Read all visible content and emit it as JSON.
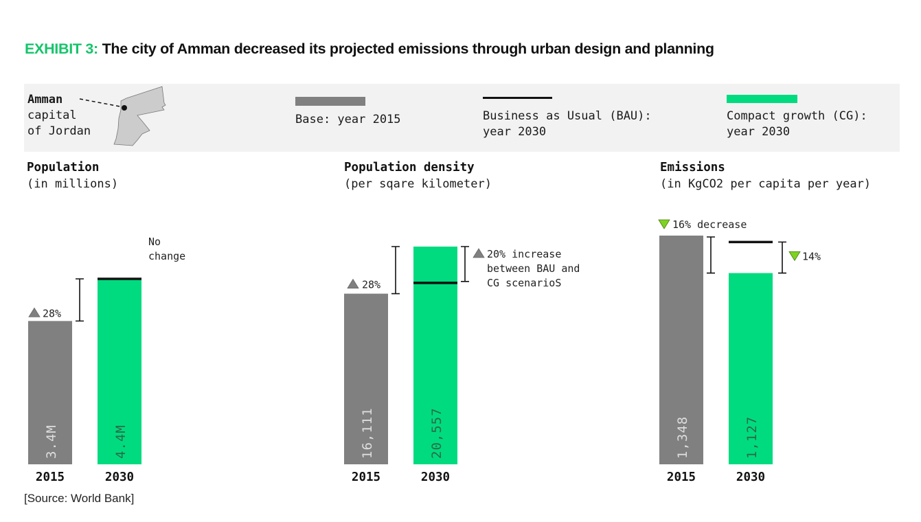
{
  "title": {
    "prefix": "EXHIBIT 3:",
    "text": " The city of Amman decreased its projected emissions through urban design and planning"
  },
  "legend": {
    "location": {
      "city": "Amman",
      "line2": "capital",
      "line3": "of Jordan",
      "map_icon": "jordan-map-icon"
    },
    "items": [
      {
        "label_line1": "Base: year 2015",
        "label_line2": "",
        "swatch": "bar",
        "color": "#808080"
      },
      {
        "label_line1": "Business as Usual (BAU):",
        "label_line2": "year 2030",
        "swatch": "line",
        "color": "#111111"
      },
      {
        "label_line1": "Compact growth (CG):",
        "label_line2": "year 2030",
        "swatch": "bar",
        "color": "#00db80"
      }
    ]
  },
  "colors": {
    "base": "#808080",
    "bau": "#111111",
    "cg": "#00db80",
    "exhibit_accent": "#17c46b",
    "increase_marker": "#808080",
    "decrease_marker": "#7ed321"
  },
  "chart_data": [
    {
      "type": "bar",
      "title": "Population",
      "subtitle": "(in millions)",
      "categories": [
        "2015",
        "2030"
      ],
      "series": [
        {
          "name": "Base: year 2015",
          "values": [
            3.4,
            null
          ],
          "labels": [
            "3.4M",
            ""
          ]
        },
        {
          "name": "Compact growth (CG): year 2030",
          "values": [
            null,
            4.4
          ],
          "labels": [
            "",
            "4.4M"
          ]
        },
        {
          "name": "Business as Usual (BAU): year 2030",
          "values": [
            null,
            4.4
          ]
        }
      ],
      "annotations": [
        {
          "text": "28%",
          "marker": "up-triangle",
          "target": "2015 to 2030 change"
        },
        {
          "text": "No change",
          "target": "BAU vs CG 2030"
        }
      ]
    },
    {
      "type": "bar",
      "title": "Population density",
      "subtitle": "(per sqare kilometer)",
      "categories": [
        "2015",
        "2030"
      ],
      "series": [
        {
          "name": "Base: year 2015",
          "values": [
            16111,
            null
          ],
          "labels": [
            "16,111",
            ""
          ]
        },
        {
          "name": "Compact growth (CG): year 2030",
          "values": [
            null,
            20557
          ],
          "labels": [
            "",
            "20,557"
          ]
        },
        {
          "name": "Business as Usual (BAU): year 2030",
          "values": [
            null,
            17130
          ]
        }
      ],
      "annotations": [
        {
          "text": "28%",
          "marker": "up-triangle",
          "target": "2015 to 2030 change"
        },
        {
          "text": "20% increase between BAU and CG scenarioS",
          "lines": [
            "20% increase",
            "between BAU and",
            "CG scenarioS"
          ],
          "marker": "up-triangle",
          "target": "BAU vs CG 2030"
        }
      ]
    },
    {
      "type": "bar",
      "title": "Emissions",
      "subtitle": "(in KgCO2 per capita per year)",
      "categories": [
        "2015",
        "2030"
      ],
      "series": [
        {
          "name": "Base: year 2015",
          "values": [
            1348,
            null
          ],
          "labels": [
            "1,348",
            ""
          ]
        },
        {
          "name": "Compact growth (CG): year 2030",
          "values": [
            null,
            1127
          ],
          "labels": [
            "",
            "1,127"
          ]
        },
        {
          "name": "Business as Usual (BAU): year 2030",
          "values": [
            null,
            1310
          ]
        }
      ],
      "annotations": [
        {
          "text": "16% decrease",
          "marker": "down-triangle",
          "target": "2015 to 2030 change"
        },
        {
          "text": "14%",
          "marker": "down-triangle",
          "target": "BAU vs CG 2030"
        }
      ]
    }
  ],
  "source": "[Source: World Bank]"
}
